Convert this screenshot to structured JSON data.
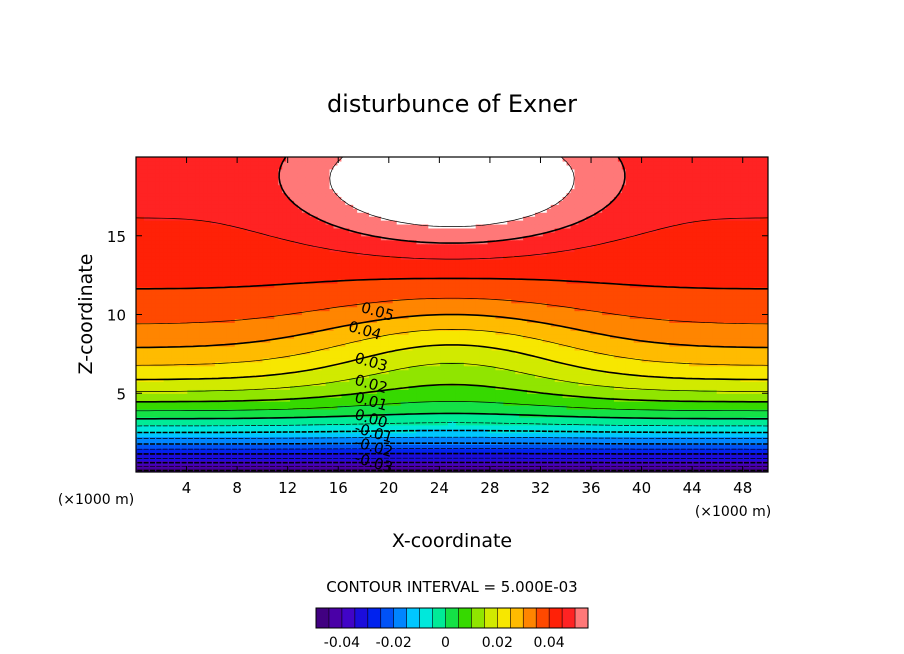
{
  "chart_data": {
    "type": "contour",
    "title": "disturbunce of Exner",
    "xlabel": "X-coordinate",
    "ylabel": "Z-coordinate",
    "x_unit_label": "(×1000 m)",
    "y_unit_label": "(×1000 m)",
    "xlim": [
      0,
      50
    ],
    "ylim": [
      0,
      20
    ],
    "x_ticks": [
      4,
      8,
      12,
      16,
      20,
      24,
      28,
      32,
      36,
      40,
      44,
      48
    ],
    "y_ticks": [
      5,
      10,
      15
    ],
    "contour_interval_label": "CONTOUR INTERVAL = 5.000E-03",
    "contour_interval": 0.005,
    "levels_min": -0.05,
    "levels_max": 0.055,
    "contour_labels": [
      {
        "text": "0.05",
        "x": 19,
        "z": 10.2
      },
      {
        "text": "0.04",
        "x": 18,
        "z": 9.0
      },
      {
        "text": "0.03",
        "x": 18.5,
        "z": 7.0
      },
      {
        "text": "0.02",
        "x": 18.5,
        "z": 5.6
      },
      {
        "text": "0.01",
        "x": 18.5,
        "z": 4.5
      },
      {
        "text": "0.00",
        "x": 18.5,
        "z": 3.4
      },
      {
        "text": "-0.01",
        "x": 18.7,
        "z": 2.5
      },
      {
        "text": "-0.02",
        "x": 18.7,
        "z": 1.6
      },
      {
        "text": "-0.03",
        "x": 18.7,
        "z": 0.6
      }
    ],
    "colorbar": {
      "min": -0.05,
      "max": 0.055,
      "tick_labels": [
        "-0.04",
        "-0.02",
        "0",
        "0.02",
        "0.04"
      ],
      "tick_values": [
        -0.04,
        -0.02,
        0,
        0.02,
        0.04
      ]
    }
  }
}
